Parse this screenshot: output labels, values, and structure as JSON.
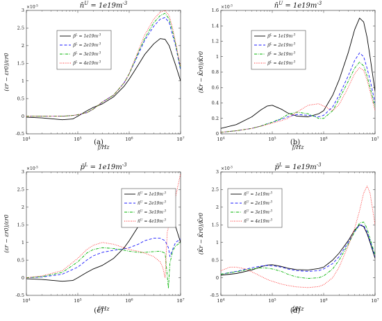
{
  "chart_data": [
    {
      "id": "a",
      "type": "line",
      "title": "n̄^U = 1e19m^-3",
      "xlabel": "f/Hz",
      "ylabel": "(εr − εr0)/εr0",
      "xscale": "log",
      "xlim": [
        10000,
        10000000
      ],
      "ylim": [
        -0.5,
        3
      ],
      "yticks": [
        -0.5,
        0,
        0.5,
        1,
        1.5,
        2,
        2.5,
        3
      ],
      "yexponent": "×10^-5",
      "xticks": [
        "10^4",
        "10^5",
        "10^6",
        "10^7"
      ],
      "legend_position": "top-center",
      "panel_label": "(a)",
      "series": [
        {
          "name": "p̄^L = 1e19m^-3",
          "color": "#000000",
          "dash": "solid",
          "x": [
            10000,
            20000,
            50000,
            80000,
            100000,
            150000,
            200000,
            300000,
            500000,
            800000,
            1000000,
            1500000,
            2000000,
            3000000,
            4000000,
            5000000,
            6000000,
            7000000,
            8000000,
            10000000
          ],
          "y": [
            -0.03,
            -0.05,
            -0.1,
            -0.08,
            0.0,
            0.15,
            0.25,
            0.35,
            0.55,
            0.85,
            1.05,
            1.45,
            1.75,
            2.05,
            2.2,
            2.18,
            2.0,
            1.7,
            1.45,
            1.0
          ]
        },
        {
          "name": "p̄^L = 2e19m^-3",
          "color": "#1a1aff",
          "dash": "dashed",
          "x": [
            10000,
            20000,
            50000,
            80000,
            100000,
            150000,
            200000,
            300000,
            500000,
            800000,
            1000000,
            1500000,
            2000000,
            3000000,
            4000000,
            5000000,
            6000000,
            7000000,
            8000000,
            10000000
          ],
          "y": [
            0.0,
            0.0,
            0.0,
            0.02,
            0.04,
            0.1,
            0.2,
            0.4,
            0.6,
            0.95,
            1.2,
            1.75,
            2.15,
            2.55,
            2.75,
            2.8,
            2.65,
            2.3,
            2.0,
            1.3
          ]
        },
        {
          "name": "p̄^L = 3e19m^-3",
          "color": "#00b300",
          "dash": "dashdot",
          "x": [
            10000,
            20000,
            50000,
            80000,
            100000,
            150000,
            200000,
            300000,
            500000,
            800000,
            1000000,
            1500000,
            2000000,
            3000000,
            4000000,
            5000000,
            6000000,
            7000000,
            8000000,
            10000000
          ],
          "y": [
            0.0,
            0.0,
            0.0,
            0.02,
            0.04,
            0.1,
            0.2,
            0.4,
            0.6,
            0.95,
            1.2,
            1.8,
            2.2,
            2.65,
            2.85,
            2.92,
            2.75,
            2.4,
            2.05,
            1.35
          ]
        },
        {
          "name": "p̄^L = 4e19m^-3",
          "color": "#ff2020",
          "dash": "dotted",
          "x": [
            10000,
            20000,
            50000,
            80000,
            100000,
            150000,
            200000,
            300000,
            500000,
            800000,
            1000000,
            1500000,
            2000000,
            3000000,
            4000000,
            5000000,
            6000000,
            7000000,
            8000000,
            10000000
          ],
          "y": [
            0.0,
            0.0,
            0.0,
            0.02,
            0.04,
            0.1,
            0.2,
            0.4,
            0.6,
            0.95,
            1.2,
            1.85,
            2.3,
            2.75,
            2.95,
            3.0,
            2.85,
            2.5,
            2.1,
            1.4
          ]
        }
      ]
    },
    {
      "id": "b",
      "type": "line",
      "title": "n̄^U = 1e19m^-3",
      "xlabel": "f/Hz",
      "ylabel": "(K̄r − K̄r0)/K̄r0",
      "xscale": "log",
      "xlim": [
        10000,
        10000000
      ],
      "ylim": [
        0,
        1.6
      ],
      "yticks": [
        0,
        0.2,
        0.4,
        0.6,
        0.8,
        1,
        1.2,
        1.4,
        1.6
      ],
      "yexponent": "×10^-3",
      "xticks": [
        "10^4",
        "10^5",
        "10^6",
        "10^7"
      ],
      "legend_position": "top-center",
      "panel_label": "(b)",
      "series": [
        {
          "name": "p̄^L = 1e19m^-3",
          "color": "#000000",
          "dash": "solid",
          "x": [
            10000,
            20000,
            40000,
            60000,
            80000,
            100000,
            150000,
            200000,
            300000,
            500000,
            800000,
            1000000,
            1500000,
            2000000,
            3000000,
            4000000,
            5000000,
            6000000,
            7000000,
            8000000,
            10000000
          ],
          "y": [
            0.07,
            0.12,
            0.22,
            0.31,
            0.36,
            0.37,
            0.32,
            0.27,
            0.23,
            0.22,
            0.26,
            0.3,
            0.5,
            0.7,
            1.05,
            1.35,
            1.5,
            1.45,
            1.25,
            1.0,
            0.55
          ]
        },
        {
          "name": "p̄^L = 2e19m^-3",
          "color": "#1a1aff",
          "dash": "dashed",
          "x": [
            10000,
            20000,
            40000,
            60000,
            80000,
            100000,
            150000,
            200000,
            300000,
            500000,
            800000,
            1000000,
            1500000,
            2000000,
            3000000,
            4000000,
            5000000,
            6000000,
            7000000,
            8000000,
            10000000
          ],
          "y": [
            0.02,
            0.04,
            0.07,
            0.1,
            0.13,
            0.15,
            0.19,
            0.22,
            0.25,
            0.24,
            0.22,
            0.24,
            0.35,
            0.5,
            0.75,
            0.95,
            1.05,
            1.0,
            0.85,
            0.7,
            0.4
          ]
        },
        {
          "name": "p̄^L = 3e19m^-3",
          "color": "#00b300",
          "dash": "dashdot",
          "x": [
            10000,
            20000,
            40000,
            60000,
            80000,
            100000,
            150000,
            200000,
            300000,
            500000,
            800000,
            1000000,
            1500000,
            2000000,
            3000000,
            4000000,
            5000000,
            6000000,
            7000000,
            8000000,
            10000000
          ],
          "y": [
            0.02,
            0.04,
            0.07,
            0.1,
            0.13,
            0.15,
            0.2,
            0.25,
            0.28,
            0.26,
            0.2,
            0.2,
            0.3,
            0.45,
            0.68,
            0.85,
            0.93,
            0.88,
            0.75,
            0.6,
            0.35
          ]
        },
        {
          "name": "p̄^L = 4e19m^-3",
          "color": "#ff2020",
          "dash": "dotted",
          "x": [
            10000,
            20000,
            40000,
            60000,
            80000,
            100000,
            150000,
            200000,
            300000,
            500000,
            800000,
            1000000,
            1500000,
            2000000,
            3000000,
            4000000,
            5000000,
            6000000,
            7000000,
            8000000,
            10000000
          ],
          "y": [
            0.02,
            0.04,
            0.07,
            0.1,
            0.12,
            0.14,
            0.17,
            0.2,
            0.28,
            0.37,
            0.39,
            0.36,
            0.3,
            0.38,
            0.6,
            0.78,
            0.86,
            0.82,
            0.7,
            0.55,
            0.3
          ]
        }
      ]
    },
    {
      "id": "c",
      "type": "line",
      "title": "p̄^L = 1e19m^-3",
      "xlabel": "f/Hz",
      "ylabel": "(εr − εr0)/εr0",
      "xscale": "log",
      "xlim": [
        10000,
        10000000
      ],
      "ylim": [
        -0.5,
        3
      ],
      "yticks": [
        -0.5,
        0,
        0.5,
        1,
        1.5,
        2,
        2.5,
        3
      ],
      "yexponent": "×10^-5",
      "xticks": [
        "10^4",
        "10^5",
        "10^6",
        "10^7"
      ],
      "legend_position": "top-right",
      "panel_label": "(c)",
      "series": [
        {
          "name": "n̄^U = 1e19m^-3",
          "color": "#000000",
          "dash": "solid",
          "x": [
            10000,
            20000,
            50000,
            80000,
            100000,
            150000,
            200000,
            300000,
            500000,
            800000,
            1000000,
            1500000,
            2000000,
            3000000,
            4000000,
            5000000,
            6000000,
            7000000,
            8000000,
            10000000
          ],
          "y": [
            -0.03,
            -0.05,
            -0.1,
            -0.08,
            0.0,
            0.15,
            0.25,
            0.35,
            0.55,
            0.85,
            1.05,
            1.45,
            1.75,
            2.05,
            2.2,
            2.18,
            2.0,
            1.7,
            1.45,
            1.0
          ]
        },
        {
          "name": "n̄^U = 2e19m^-3",
          "color": "#1a1aff",
          "dash": "dashed",
          "x": [
            10000,
            20000,
            50000,
            100000,
            150000,
            200000,
            300000,
            500000,
            800000,
            1000000,
            1500000,
            2000000,
            3000000,
            4000000,
            5000000,
            5800000,
            6200000,
            7000000,
            8000000,
            10000000
          ],
          "y": [
            0.0,
            0.02,
            0.1,
            0.3,
            0.5,
            0.62,
            0.72,
            0.78,
            0.82,
            0.85,
            0.95,
            1.05,
            1.12,
            1.12,
            1.05,
            0.85,
            0.6,
            0.8,
            1.0,
            1.1
          ]
        },
        {
          "name": "n̄^U = 3e19m^-3",
          "color": "#00b300",
          "dash": "dashdot",
          "x": [
            10000,
            20000,
            50000,
            100000,
            150000,
            200000,
            300000,
            500000,
            800000,
            1000000,
            1500000,
            2000000,
            3000000,
            4000000,
            5000000,
            5800000,
            6200000,
            7000000,
            8000000,
            10000000
          ],
          "y": [
            0.0,
            0.03,
            0.15,
            0.45,
            0.7,
            0.8,
            0.85,
            0.83,
            0.78,
            0.75,
            0.72,
            0.72,
            0.74,
            0.75,
            0.7,
            -0.3,
            0.4,
            0.75,
            0.9,
            1.0
          ]
        },
        {
          "name": "n̄^U = 4e19m^-3",
          "color": "#ff2020",
          "dash": "dotted",
          "x": [
            10000,
            20000,
            50000,
            100000,
            150000,
            200000,
            300000,
            500000,
            800000,
            1000000,
            1500000,
            2000000,
            3000000,
            4000000,
            4500000,
            5000000,
            5500000,
            6000000,
            7000000,
            8000000,
            10000000
          ],
          "y": [
            0.0,
            0.05,
            0.2,
            0.55,
            0.8,
            0.92,
            1.0,
            0.95,
            0.85,
            0.8,
            0.75,
            0.7,
            0.6,
            0.45,
            0.3,
            0.0,
            1.3,
            1.5,
            1.9,
            2.3,
            2.95
          ]
        }
      ]
    },
    {
      "id": "d",
      "type": "line",
      "title": "p̄^L = 1e19m^-3",
      "xlabel": "f/Hz",
      "ylabel": "(K̄r − K̄r0)/K̄r0",
      "xscale": "log",
      "xlim": [
        10000,
        10000000
      ],
      "ylim": [
        -0.5,
        3
      ],
      "yticks": [
        -0.5,
        0,
        0.5,
        1,
        1.5,
        2,
        2.5,
        3
      ],
      "yexponent": "×10^-3",
      "xticks": [
        "10^4",
        "10^5",
        "10^6",
        "10^7"
      ],
      "legend_position": "top-left",
      "panel_label": "(d)",
      "series": [
        {
          "name": "n̄^U = 1e19m^-3",
          "color": "#000000",
          "dash": "solid",
          "x": [
            10000,
            20000,
            40000,
            60000,
            80000,
            100000,
            150000,
            200000,
            300000,
            500000,
            800000,
            1000000,
            1500000,
            2000000,
            3000000,
            4000000,
            5000000,
            6000000,
            7000000,
            8000000,
            10000000
          ],
          "y": [
            0.07,
            0.12,
            0.22,
            0.31,
            0.36,
            0.37,
            0.32,
            0.27,
            0.23,
            0.22,
            0.26,
            0.3,
            0.5,
            0.7,
            1.05,
            1.35,
            1.5,
            1.45,
            1.25,
            1.0,
            0.55
          ]
        },
        {
          "name": "n̄^U = 2e19m^-3",
          "color": "#1a1aff",
          "dash": "dashed",
          "x": [
            10000,
            20000,
            40000,
            60000,
            80000,
            100000,
            150000,
            200000,
            300000,
            500000,
            800000,
            1000000,
            1500000,
            2000000,
            3000000,
            4000000,
            5000000,
            6000000,
            7000000,
            8000000,
            10000000
          ],
          "y": [
            0.1,
            0.18,
            0.28,
            0.33,
            0.35,
            0.34,
            0.3,
            0.25,
            0.2,
            0.18,
            0.2,
            0.25,
            0.4,
            0.6,
            1.0,
            1.3,
            1.5,
            1.48,
            1.3,
            1.05,
            0.6
          ]
        },
        {
          "name": "n̄^U = 3e19m^-3",
          "color": "#00b300",
          "dash": "dashdot",
          "x": [
            10000,
            20000,
            40000,
            60000,
            80000,
            100000,
            150000,
            200000,
            300000,
            500000,
            800000,
            1000000,
            1500000,
            2000000,
            3000000,
            4000000,
            5000000,
            6000000,
            7000000,
            8000000,
            10000000
          ],
          "y": [
            0.1,
            0.17,
            0.25,
            0.28,
            0.27,
            0.25,
            0.18,
            0.1,
            0.02,
            -0.02,
            0.0,
            0.05,
            0.25,
            0.5,
            0.95,
            1.3,
            1.55,
            1.58,
            1.4,
            1.1,
            0.65
          ]
        },
        {
          "name": "n̄^U = 4e19m^-3",
          "color": "#ff2020",
          "dash": "dotted",
          "x": [
            10000,
            15000,
            20000,
            30000,
            50000,
            80000,
            100000,
            150000,
            200000,
            300000,
            500000,
            800000,
            1000000,
            1500000,
            2000000,
            3000000,
            4000000,
            5000000,
            6000000,
            7000000,
            8000000,
            10000000
          ],
          "y": [
            0.2,
            0.3,
            0.3,
            0.25,
            0.1,
            -0.05,
            -0.1,
            -0.18,
            -0.22,
            -0.26,
            -0.28,
            -0.25,
            -0.2,
            0.0,
            0.3,
            0.9,
            1.4,
            1.9,
            2.4,
            2.6,
            2.4,
            1.5
          ]
        }
      ]
    }
  ]
}
